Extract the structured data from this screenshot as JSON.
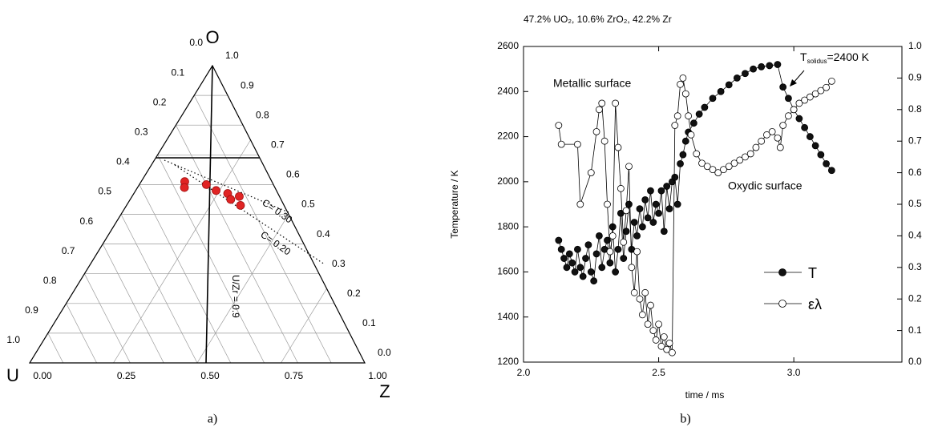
{
  "chart_data": [
    {
      "type": "ternary",
      "vertex_labels": {
        "top": "O",
        "left": "U",
        "right": "Z"
      },
      "o_ticks": [
        {
          "value": 0,
          "label": "0.0"
        },
        0.1,
        0.2,
        0.3,
        0.4,
        0.5,
        0.6,
        0.7,
        0.8,
        0.9,
        {
          "value": 1,
          "label": "1.0"
        }
      ],
      "u_ticks": [
        {
          "value": 0,
          "label": "0.0"
        },
        0.1,
        0.2,
        0.3,
        0.4,
        0.5,
        0.6,
        0.7,
        0.8,
        0.9,
        {
          "value": 1,
          "label": "1.0"
        }
      ],
      "zr_ticks": [
        {
          "value": 0,
          "label": "0.00"
        },
        0.25,
        {
          "value": 0.5,
          "label": "0.50"
        },
        0.75,
        {
          "value": 1,
          "label": "1.00"
        }
      ],
      "o_values": [
        0.61,
        0.59,
        0.6,
        0.58,
        0.57,
        0.55,
        0.56,
        0.53
      ],
      "zr_values": [
        0.13,
        0.14,
        0.2,
        0.24,
        0.28,
        0.3,
        0.32,
        0.34
      ],
      "color": "#e02424",
      "ratio_label": "U/Zr = 0.9",
      "u_zr_ratio": 0.9,
      "annotations": [
        "C= 0.30",
        "C= 0.20"
      ],
      "caption": "a)"
    },
    {
      "type": "line",
      "title": "47.2% UO₂, 10.6% ZrO₂, 42.2% Zr",
      "x_label": "time / ms",
      "y_label": "Temperature / K",
      "xlim": [
        2.0,
        3.4
      ],
      "xticks": [
        {
          "value": 2,
          "label": "2.0"
        },
        2.5,
        {
          "value": 3,
          "label": "3.0"
        }
      ],
      "ylim": [
        1200,
        2600
      ],
      "yticks": [
        1200,
        1400,
        1600,
        1800,
        2000,
        2200,
        2400,
        2600
      ],
      "y2lim": [
        0,
        1
      ],
      "y2ticks": [
        {
          "value": 0,
          "label": "0.0"
        },
        0.1,
        0.2,
        0.3,
        0.4,
        0.5,
        0.6,
        0.7,
        0.8,
        0.9,
        {
          "value": 1,
          "label": "1.0"
        }
      ],
      "series": [
        {
          "name": "T",
          "color": "#111111",
          "x": [
            2.13,
            2.14,
            2.15,
            2.16,
            2.17,
            2.18,
            2.19,
            2.2,
            2.21,
            2.22,
            2.23,
            2.24,
            2.25,
            2.26,
            2.27,
            2.28,
            2.29,
            2.3,
            2.31,
            2.32,
            2.33,
            2.34,
            2.35,
            2.36,
            2.37,
            2.38,
            2.39,
            2.4,
            2.41,
            2.42,
            2.43,
            2.44,
            2.45,
            2.46,
            2.47,
            2.48,
            2.49,
            2.5,
            2.51,
            2.52,
            2.53,
            2.54,
            2.55,
            2.56,
            2.57,
            2.58,
            2.59,
            2.6,
            2.61,
            2.63,
            2.65,
            2.67,
            2.7,
            2.73,
            2.76,
            2.79,
            2.82,
            2.85,
            2.88,
            2.91,
            2.94,
            2.96,
            2.98,
            3.0,
            3.02,
            3.04,
            3.06,
            3.08,
            3.1,
            3.12,
            3.14
          ],
          "values": [
            1740,
            1700,
            1660,
            1620,
            1680,
            1640,
            1600,
            1700,
            1620,
            1580,
            1660,
            1720,
            1600,
            1560,
            1680,
            1760,
            1620,
            1700,
            1740,
            1640,
            1800,
            1600,
            1700,
            1860,
            1660,
            1780,
            1900,
            1700,
            1820,
            1760,
            1880,
            1800,
            1920,
            1840,
            1960,
            1820,
            1900,
            1860,
            1960,
            1780,
            1980,
            1880,
            2000,
            2020,
            1900,
            2080,
            2120,
            2180,
            2220,
            2260,
            2300,
            2330,
            2370,
            2400,
            2430,
            2460,
            2480,
            2500,
            2510,
            2515,
            2520,
            2420,
            2370,
            2320,
            2280,
            2240,
            2200,
            2160,
            2120,
            2080,
            2050
          ]
        },
        {
          "name": "ελ",
          "color": "#ffffff",
          "axis": "y2",
          "x": [
            2.13,
            2.14,
            2.2,
            2.21,
            2.25,
            2.27,
            2.28,
            2.29,
            2.3,
            2.31,
            2.32,
            2.33,
            2.34,
            2.35,
            2.36,
            2.37,
            2.38,
            2.39,
            2.4,
            2.41,
            2.42,
            2.43,
            2.44,
            2.45,
            2.46,
            2.47,
            2.48,
            2.49,
            2.5,
            2.51,
            2.52,
            2.53,
            2.54,
            2.55,
            2.56,
            2.57,
            2.58,
            2.59,
            2.6,
            2.61,
            2.62,
            2.64,
            2.66,
            2.68,
            2.7,
            2.72,
            2.74,
            2.76,
            2.78,
            2.8,
            2.82,
            2.84,
            2.86,
            2.88,
            2.9,
            2.92,
            2.94,
            2.95,
            2.96,
            2.98,
            3.0,
            3.02,
            3.04,
            3.06,
            3.08,
            3.1,
            3.12,
            3.14
          ],
          "values": [
            0.75,
            0.69,
            0.69,
            0.5,
            0.6,
            0.73,
            0.8,
            0.82,
            0.7,
            0.5,
            0.35,
            0.4,
            0.82,
            0.68,
            0.55,
            0.38,
            0.48,
            0.62,
            0.3,
            0.22,
            0.35,
            0.2,
            0.15,
            0.22,
            0.12,
            0.18,
            0.1,
            0.07,
            0.12,
            0.05,
            0.08,
            0.04,
            0.06,
            0.03,
            0.75,
            0.78,
            0.88,
            0.9,
            0.85,
            0.78,
            0.72,
            0.66,
            0.63,
            0.62,
            0.61,
            0.6,
            0.61,
            0.62,
            0.63,
            0.64,
            0.65,
            0.66,
            0.68,
            0.7,
            0.72,
            0.73,
            0.71,
            0.68,
            0.75,
            0.78,
            0.8,
            0.82,
            0.83,
            0.84,
            0.85,
            0.86,
            0.87,
            0.89
          ]
        }
      ],
      "annotations": [
        "Metallic surface",
        "Oxydic surface"
      ],
      "solidus_label": {
        "main": "T",
        "sub": "solidus",
        "rest": "=2400 K"
      },
      "caption": "b)"
    }
  ]
}
